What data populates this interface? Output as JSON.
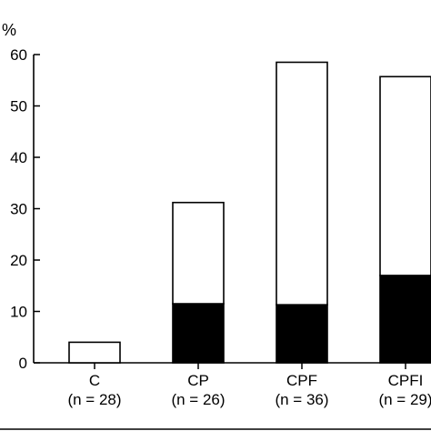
{
  "chart_data": {
    "type": "bar",
    "stacked": true,
    "y_unit_label": "%",
    "ylim": [
      0,
      60
    ],
    "yticks": [
      0,
      10,
      20,
      30,
      40,
      50,
      60
    ],
    "ytick_labels": [
      "0",
      "10",
      "20",
      "30",
      "40",
      "50",
      "60"
    ],
    "categories": [
      "C",
      "CP",
      "CPF",
      "CPFI"
    ],
    "category_n_labels": [
      "(n = 28)",
      "(n = 26)",
      "(n = 36)",
      "(n = 29)"
    ],
    "series": [
      {
        "values": [
          0,
          11.5,
          11.3,
          17
        ],
        "color": "#000000"
      },
      {
        "values": [
          4,
          19.7,
          47.2,
          38.7
        ],
        "color": "#ffffff"
      }
    ],
    "totals": [
      4,
      31.2,
      58.5,
      55.7
    ],
    "grid": false,
    "legend": "none"
  }
}
